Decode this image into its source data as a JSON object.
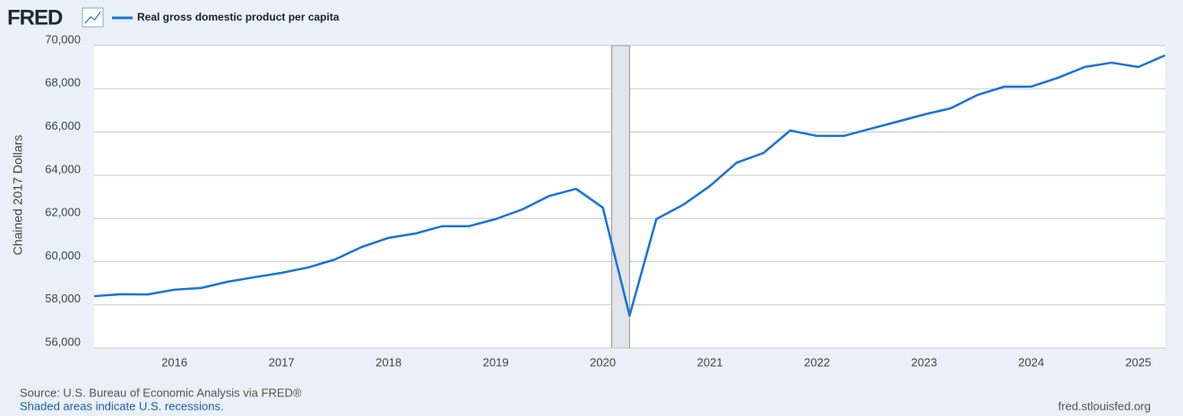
{
  "logo": "FRED",
  "chart_data": {
    "type": "line",
    "y_label": "Chained 2017 Dollars",
    "x": [
      2015.25,
      2015.5,
      2015.75,
      2016,
      2016.25,
      2016.5,
      2016.75,
      2017,
      2017.25,
      2017.5,
      2017.75,
      2018,
      2018.25,
      2018.5,
      2018.75,
      2019,
      2019.25,
      2019.5,
      2019.75,
      2020,
      2020.25,
      2020.5,
      2020.75,
      2021,
      2021.25,
      2021.5,
      2021.75,
      2022,
      2022.25,
      2022.5,
      2022.75,
      2023,
      2023.25,
      2023.5,
      2023.75,
      2024,
      2024.25,
      2024.5,
      2024.75,
      2025,
      2025.25
    ],
    "series": [
      {
        "name": "Real gross domestic product per capita",
        "color": "#1a73d9",
        "values": [
          58400,
          58490,
          58480,
          58700,
          58780,
          59070,
          59280,
          59480,
          59730,
          60100,
          60680,
          61100,
          61300,
          61640,
          61640,
          61970,
          62420,
          63040,
          63370,
          62500,
          57500,
          61970,
          62630,
          63500,
          64580,
          65030,
          66070,
          65820,
          65820,
          66150,
          66480,
          66810,
          67100,
          67720,
          68100,
          68100,
          68510,
          69010,
          69210,
          69010,
          69550
        ]
      }
    ],
    "recessions": [
      {
        "start": 2020.083,
        "end": 2020.25
      }
    ],
    "xlim": [
      2015.25,
      2025.25
    ],
    "xticks": [
      2016,
      2017,
      2018,
      2019,
      2020,
      2021,
      2022,
      2023,
      2024,
      2025
    ],
    "ylim": [
      56000,
      70000
    ],
    "yticks": [
      {
        "value": 56000,
        "label": "56,000"
      },
      {
        "value": 58000,
        "label": "58,000"
      },
      {
        "value": 60000,
        "label": "60,000"
      },
      {
        "value": 62000,
        "label": "62,000"
      },
      {
        "value": 64000,
        "label": "64,000"
      },
      {
        "value": 66000,
        "label": "66,000"
      },
      {
        "value": 68000,
        "label": "68,000"
      },
      {
        "value": 70000,
        "label": "70,000"
      }
    ],
    "grid": true,
    "source": "Source: U.S. Bureau of Economic Analysis via FRED®",
    "note": "Shaded areas indicate U.S. recessions.",
    "site": "fred.stlouisfed.org"
  }
}
